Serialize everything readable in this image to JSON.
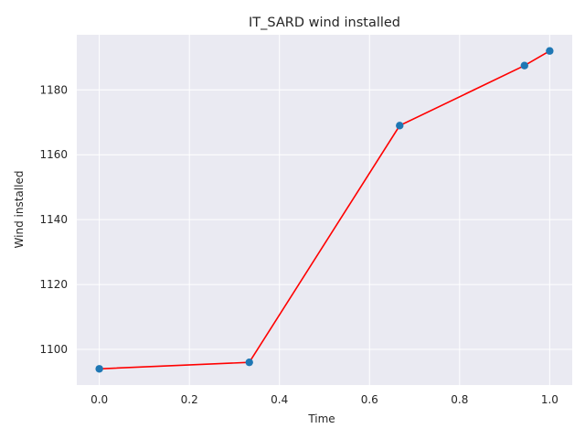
{
  "chart_data": {
    "type": "line",
    "title": "IT_SARD wind installed",
    "xlabel": "Time",
    "ylabel": "Wind installed",
    "xlim": [
      -0.05,
      1.05
    ],
    "ylim": [
      1089,
      1197
    ],
    "x_ticks": [
      0.0,
      0.2,
      0.4,
      0.6,
      0.8,
      1.0
    ],
    "x_tick_labels": [
      "0.0",
      "0.2",
      "0.4",
      "0.6",
      "0.8",
      "1.0"
    ],
    "y_ticks": [
      1100,
      1120,
      1140,
      1160,
      1180
    ],
    "y_tick_labels": [
      "1100",
      "1120",
      "1140",
      "1160",
      "1180"
    ],
    "grid": true,
    "background": "#eaeaf2",
    "series": [
      {
        "kind": "line",
        "color": "#ff0000",
        "x": [
          0.0,
          0.333,
          0.667,
          0.944,
          1.0
        ],
        "y": [
          1094,
          1096,
          1169,
          1187.5,
          1192
        ]
      },
      {
        "kind": "scatter",
        "color": "#1f77b4",
        "x": [
          0.0,
          0.333,
          0.667,
          0.944,
          1.0
        ],
        "y": [
          1094,
          1096,
          1169,
          1187.5,
          1192
        ]
      }
    ]
  }
}
